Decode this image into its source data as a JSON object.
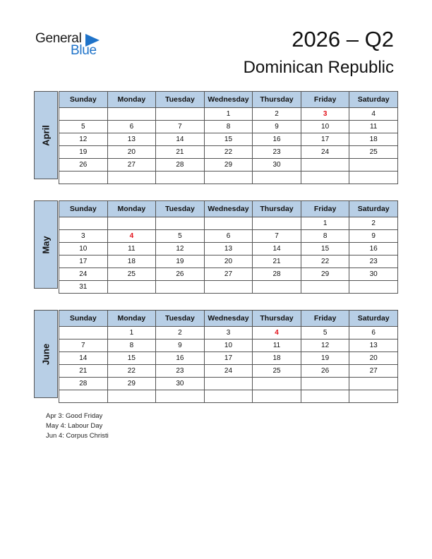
{
  "logo": {
    "line1": "General",
    "line2": "Blue"
  },
  "header": {
    "title": "2026 – Q2",
    "country": "Dominican Republic"
  },
  "weekdays": [
    "Sunday",
    "Monday",
    "Tuesday",
    "Wednesday",
    "Thursday",
    "Friday",
    "Saturday"
  ],
  "months": [
    {
      "name": "April",
      "weeks": [
        [
          "",
          "",
          "",
          "1",
          "2",
          "3",
          "4"
        ],
        [
          "5",
          "6",
          "7",
          "8",
          "9",
          "10",
          "11"
        ],
        [
          "12",
          "13",
          "14",
          "15",
          "16",
          "17",
          "18"
        ],
        [
          "19",
          "20",
          "21",
          "22",
          "23",
          "24",
          "25"
        ],
        [
          "26",
          "27",
          "28",
          "29",
          "30",
          "",
          ""
        ],
        [
          "",
          "",
          "",
          "",
          "",
          "",
          ""
        ]
      ],
      "holidays": [
        "3"
      ]
    },
    {
      "name": "May",
      "weeks": [
        [
          "",
          "",
          "",
          "",
          "",
          "1",
          "2"
        ],
        [
          "3",
          "4",
          "5",
          "6",
          "7",
          "8",
          "9"
        ],
        [
          "10",
          "11",
          "12",
          "13",
          "14",
          "15",
          "16"
        ],
        [
          "17",
          "18",
          "19",
          "20",
          "21",
          "22",
          "23"
        ],
        [
          "24",
          "25",
          "26",
          "27",
          "28",
          "29",
          "30"
        ],
        [
          "31",
          "",
          "",
          "",
          "",
          "",
          ""
        ]
      ],
      "holidays": [
        "4"
      ]
    },
    {
      "name": "June",
      "weeks": [
        [
          "",
          "1",
          "2",
          "3",
          "4",
          "5",
          "6"
        ],
        [
          "7",
          "8",
          "9",
          "10",
          "11",
          "12",
          "13"
        ],
        [
          "14",
          "15",
          "16",
          "17",
          "18",
          "19",
          "20"
        ],
        [
          "21",
          "22",
          "23",
          "24",
          "25",
          "26",
          "27"
        ],
        [
          "28",
          "29",
          "30",
          "",
          "",
          "",
          ""
        ],
        [
          "",
          "",
          "",
          "",
          "",
          "",
          ""
        ]
      ],
      "holidays": [
        "4"
      ]
    }
  ],
  "holiday_notes": [
    "Apr 3: Good Friday",
    "May 4: Labour Day",
    "Jun 4: Corpus Christi"
  ],
  "colors": {
    "header_fill": "#b8cfe6",
    "holiday": "#e3121b",
    "brand_blue": "#1f73c9"
  }
}
